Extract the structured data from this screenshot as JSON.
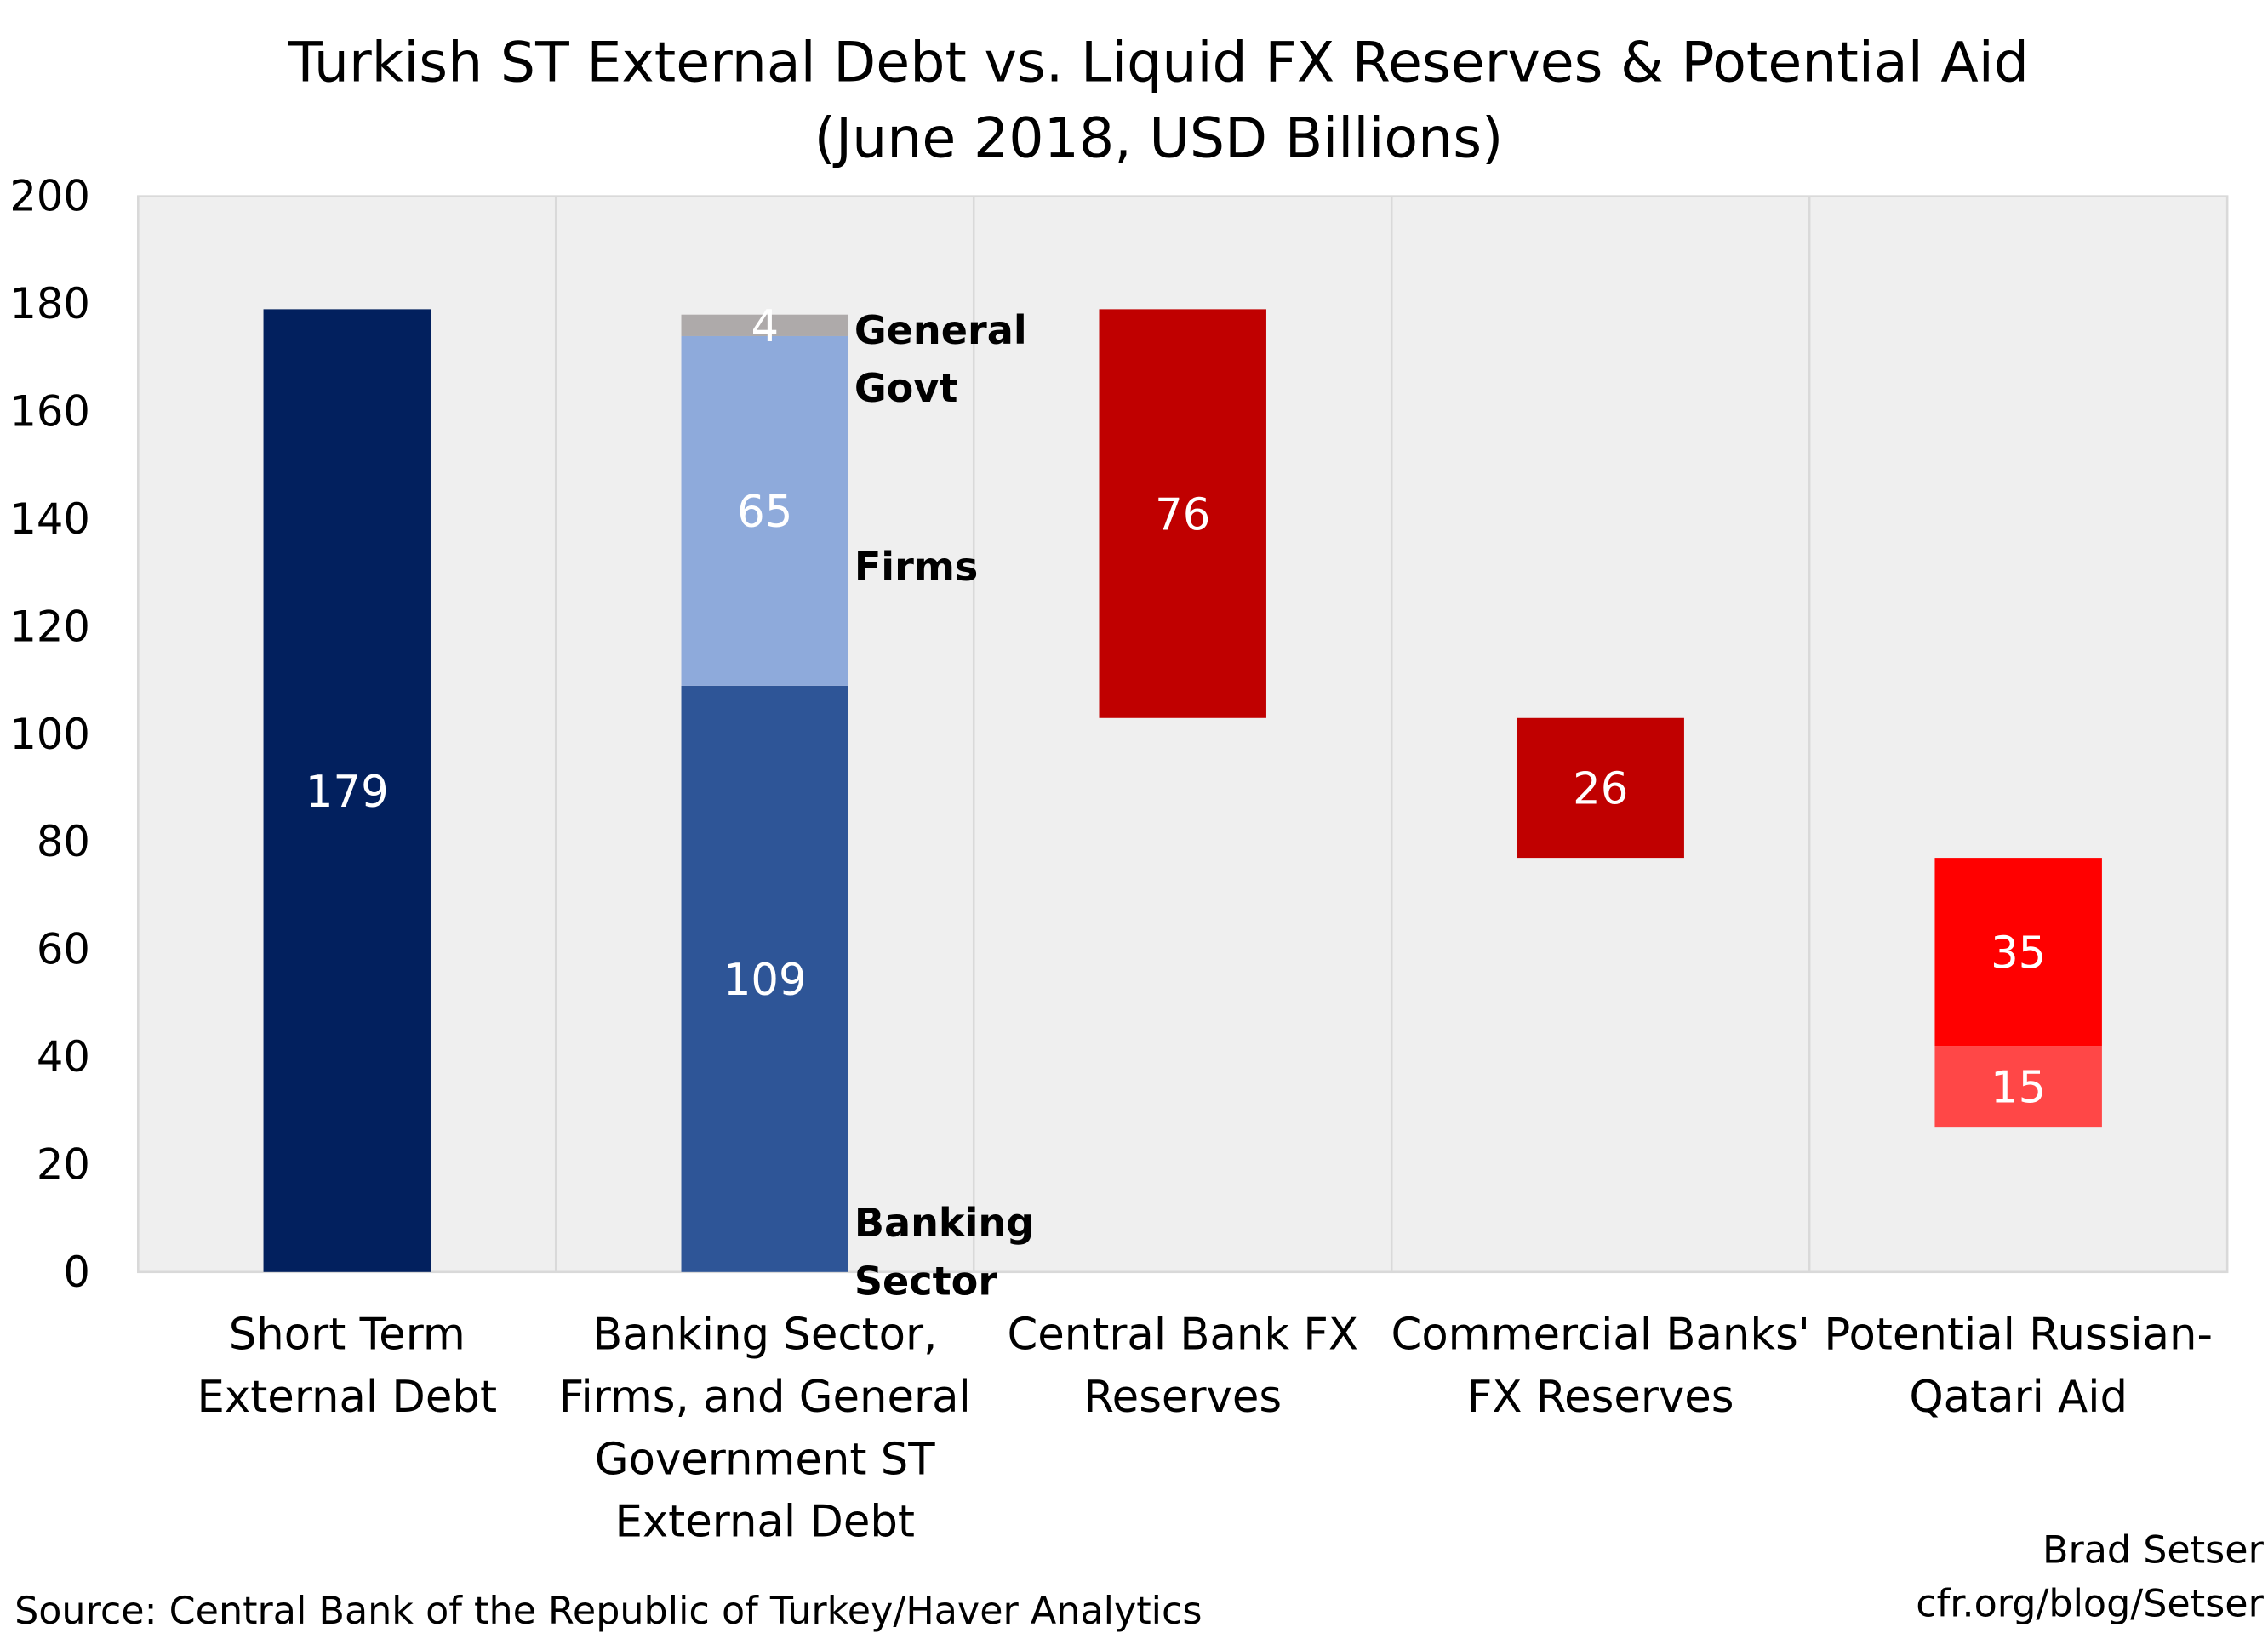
{
  "chart_data": {
    "type": "bar",
    "subtype": "stacked-waterfall",
    "title": "Turkish ST External Debt vs. Liquid FX Reserves &  Potential Aid",
    "subtitle": "(June 2018, USD Billions)",
    "xlabel": "",
    "ylabel": "",
    "ylim": [
      0,
      200
    ],
    "yticks": [
      "0",
      "20",
      "40",
      "60",
      "80",
      "100",
      "120",
      "140",
      "160",
      "180",
      "200"
    ],
    "grid": "vertical category separators",
    "background": "light gray hatched",
    "categories": [
      [
        "Short Term",
        "External Debt"
      ],
      [
        "Banking Sector,",
        "Firms, and General",
        "Government ST",
        "External Debt"
      ],
      [
        "Central Bank FX",
        "Reserves"
      ],
      [
        "Commercial Banks'",
        "FX Reserves"
      ],
      [
        "Potential Russian-",
        "Qatari Aid"
      ]
    ],
    "segments": [
      {
        "category": 0,
        "base": 0,
        "value": 179,
        "label": "179",
        "color": "#02205e"
      },
      {
        "category": 1,
        "base": 0,
        "value": 109,
        "label": "109",
        "color": "#2e5597"
      },
      {
        "category": 1,
        "base": 109,
        "value": 65,
        "label": "65",
        "color": "#8eaadb"
      },
      {
        "category": 1,
        "base": 174,
        "value": 4,
        "label": "4",
        "color": "#aeaaaa"
      },
      {
        "category": 2,
        "base": 103,
        "value": 76,
        "label": "76",
        "color": "#c00000"
      },
      {
        "category": 3,
        "base": 77,
        "value": 26,
        "label": "26",
        "color": "#c00000"
      },
      {
        "category": 4,
        "base": 42,
        "value": 35,
        "label": "35",
        "color": "#ff0000"
      },
      {
        "category": 4,
        "base": 27,
        "value": 15,
        "label": "15",
        "color": "#ff4747"
      }
    ],
    "annotations": [
      {
        "lines": [
          "General",
          "Govt"
        ],
        "category": 1,
        "at": 178
      },
      {
        "lines": [
          "Firms"
        ],
        "category": 1,
        "at": 134
      },
      {
        "lines": [
          "Banking",
          "Sector"
        ],
        "category": 1,
        "at": 12
      }
    ]
  },
  "footer": {
    "source": "Source: Central Bank of the Republic of Turkey/Haver Analytics",
    "author": "Brad Setser",
    "site": "cfr.org/blog/Setser"
  }
}
